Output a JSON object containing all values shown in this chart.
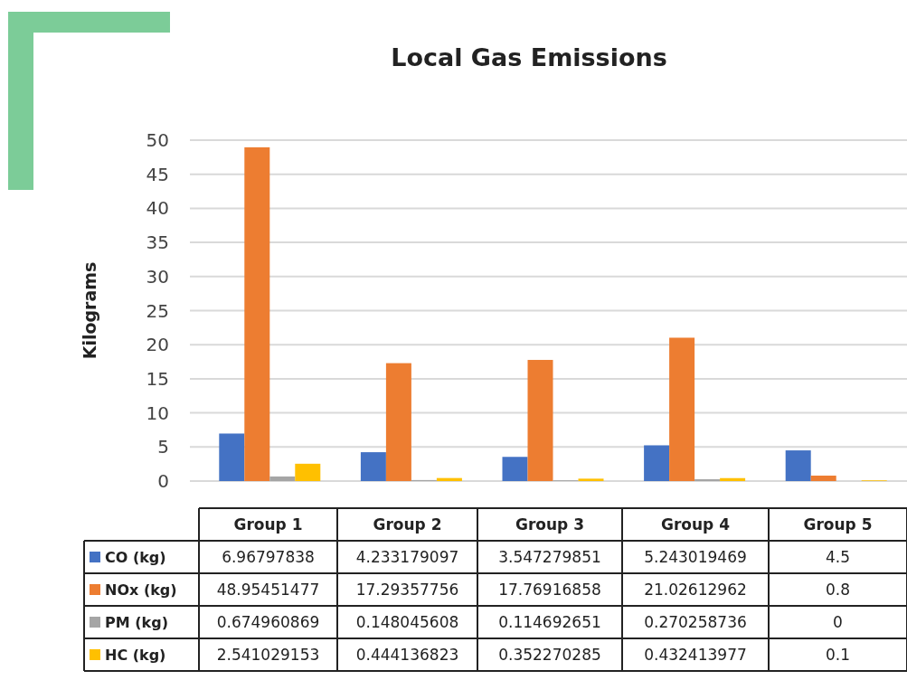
{
  "chart_data": {
    "type": "bar",
    "title": "Local Gas Emissions",
    "ylabel": "Kilograms",
    "categories": [
      "Group 1",
      "Group 2",
      "Group 3",
      "Group 4",
      "Group 5"
    ],
    "series": [
      {
        "name": "CO (kg)",
        "color": "#4472c4",
        "values": [
          6.96797838,
          4.233179097,
          3.547279851,
          5.243019469,
          4.5
        ]
      },
      {
        "name": "NOx (kg)",
        "color": "#ed7d31",
        "values": [
          48.95451477,
          17.29357756,
          17.76916858,
          21.02612962,
          0.8
        ]
      },
      {
        "name": "PM (kg)",
        "color": "#a5a5a5",
        "values": [
          0.674960869,
          0.148045608,
          0.114692651,
          0.270258736,
          0
        ]
      },
      {
        "name": "HC (kg)",
        "color": "#ffc000",
        "values": [
          2.541029153,
          0.444136823,
          0.352270285,
          0.432413977,
          0.1
        ]
      }
    ],
    "ylim": [
      0,
      50
    ],
    "yticks": [
      0,
      5,
      10,
      15,
      20,
      25,
      30,
      35,
      40,
      45,
      50
    ],
    "grid": "y",
    "data_labels": true,
    "legend": "bottom"
  }
}
